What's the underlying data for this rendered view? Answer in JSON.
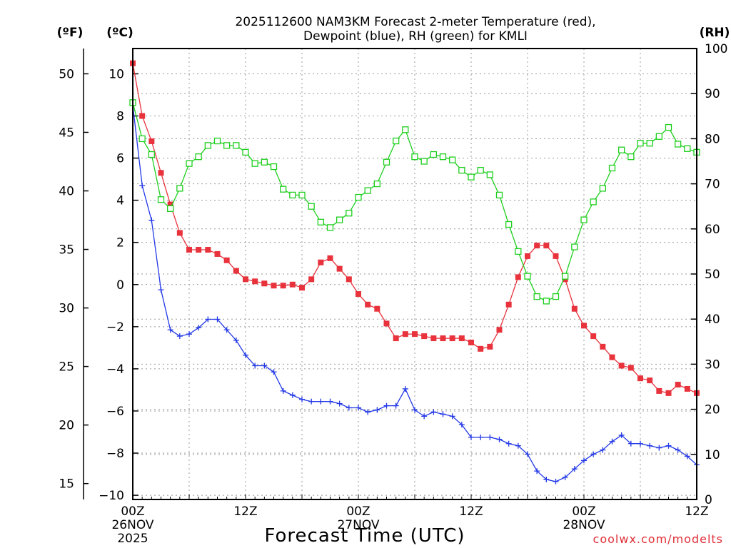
{
  "colors": {
    "temperature": "#e8323c",
    "dewpoint": "#2238e6",
    "rh": "#1ecf1e",
    "grid": "#999999"
  },
  "chart_data": {
    "type": "line",
    "title_line1": "2025112600 NAM3KM Forecast 2-meter Temperature (red),",
    "title_line2": "Dewpoint (blue), RH (green) for KMLI",
    "xlabel": "Forecast Time (UTC)",
    "credit": "coolwx.com/modelts",
    "units": {
      "fahrenheit": "(ºF)",
      "celsius": "(ºC)",
      "rh": "(RH)"
    },
    "x_range_hours": [
      0,
      60
    ],
    "celsius_range": [
      -10.2,
      11.2
    ],
    "rh_range": [
      0,
      100
    ],
    "celsius_ticks": [
      "10",
      "8",
      "6",
      "4",
      "2",
      "0",
      "−2",
      "−4",
      "−6",
      "−8",
      "−10"
    ],
    "celsius_tick_values": [
      10,
      8,
      6,
      4,
      2,
      0,
      -2,
      -4,
      -6,
      -8,
      -10
    ],
    "fahrenheit_ticks": [
      "50",
      "45",
      "40",
      "35",
      "30",
      "25",
      "20",
      "15"
    ],
    "fahrenheit_tick_values": [
      50,
      45,
      40,
      35,
      30,
      25,
      20,
      15
    ],
    "rh_ticks": [
      "100",
      "90",
      "80",
      "70",
      "60",
      "50",
      "40",
      "30",
      "20",
      "10",
      "0"
    ],
    "rh_tick_values": [
      100,
      90,
      80,
      70,
      60,
      50,
      40,
      30,
      20,
      10,
      0
    ],
    "x_ticks": [
      {
        "hour": 0,
        "label": "00Z",
        "date": "26NOV",
        "year": "2025"
      },
      {
        "hour": 12,
        "label": "12Z",
        "date": "",
        "year": ""
      },
      {
        "hour": 24,
        "label": "00Z",
        "date": "27NOV",
        "year": ""
      },
      {
        "hour": 36,
        "label": "12Z",
        "date": "",
        "year": ""
      },
      {
        "hour": 48,
        "label": "00Z",
        "date": "28NOV",
        "year": ""
      },
      {
        "hour": 60,
        "label": "12Z",
        "date": "",
        "year": ""
      }
    ],
    "series": [
      {
        "name": "Temperature",
        "units": "C",
        "marker": "filled-square",
        "values": [
          10.5,
          8.0,
          6.8,
          5.3,
          3.8,
          2.45,
          1.65,
          1.65,
          1.65,
          1.45,
          1.15,
          0.65,
          0.25,
          0.15,
          0.05,
          -0.05,
          -0.05,
          0.0,
          -0.15,
          0.25,
          1.05,
          1.25,
          0.75,
          0.25,
          -0.45,
          -0.95,
          -1.15,
          -1.85,
          -2.55,
          -2.35,
          -2.35,
          -2.45,
          -2.55,
          -2.55,
          -2.55,
          -2.55,
          -2.75,
          -3.05,
          -2.95,
          -2.15,
          -0.95,
          0.35,
          1.35,
          1.85,
          1.85,
          1.35,
          0.25,
          -1.15,
          -1.95,
          -2.45,
          -2.95,
          -3.45,
          -3.85,
          -3.95,
          -4.45,
          -4.55,
          -5.05,
          -5.15,
          -4.75,
          -4.95,
          -5.15
        ]
      },
      {
        "name": "Dewpoint",
        "units": "C",
        "marker": "plus",
        "values": [
          8.5,
          4.7,
          3.05,
          -0.25,
          -2.15,
          -2.45,
          -2.35,
          -2.05,
          -1.65,
          -1.65,
          -2.15,
          -2.65,
          -3.35,
          -3.85,
          -3.85,
          -4.15,
          -5.05,
          -5.25,
          -5.45,
          -5.55,
          -5.55,
          -5.55,
          -5.65,
          -5.85,
          -5.85,
          -6.05,
          -5.95,
          -5.75,
          -5.75,
          -4.95,
          -5.95,
          -6.25,
          -6.05,
          -6.15,
          -6.25,
          -6.65,
          -7.25,
          -7.25,
          -7.25,
          -7.35,
          -7.55,
          -7.65,
          -8.05,
          -8.85,
          -9.25,
          -9.35,
          -9.15,
          -8.75,
          -8.35,
          -8.05,
          -7.85,
          -7.45,
          -7.15,
          -7.55,
          -7.55,
          -7.65,
          -7.75,
          -7.65,
          -7.85,
          -8.15,
          -8.55
        ]
      },
      {
        "name": "Relative Humidity",
        "units": "%",
        "marker": "open-square",
        "values": [
          88,
          80,
          76.5,
          66.5,
          64.5,
          69,
          74.5,
          76,
          78.5,
          79.5,
          78.5,
          78.5,
          77,
          74.5,
          74.8,
          73.8,
          68.8,
          67.5,
          67.5,
          65,
          61.5,
          60.3,
          62,
          63.5,
          67,
          68.5,
          70,
          74.8,
          79.5,
          82,
          76,
          75,
          76.5,
          76,
          75.3,
          73,
          71.5,
          73,
          72,
          67.5,
          61,
          55,
          49.5,
          45,
          44,
          45,
          49.5,
          56,
          62,
          66,
          69,
          73.5,
          77.5,
          76,
          79,
          79,
          80.5,
          82.5,
          78.8,
          77.8,
          77
        ]
      }
    ]
  }
}
